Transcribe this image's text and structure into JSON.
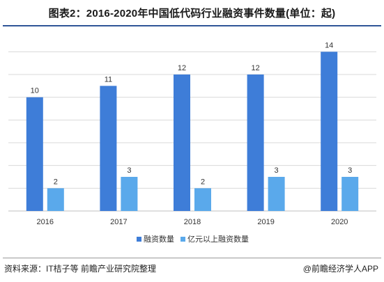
{
  "title": "图表2：2016-2020年中国低代码行业融资事件数量(单位：起)",
  "source": "资料来源：IT桔子等 前瞻产业研究院整理",
  "brand": "@前瞻经济学人APP",
  "colors": {
    "series1": "#3e7dd8",
    "series2": "#5aa9eb",
    "grid": "#d9d9d9",
    "axis": "#bfbfbf"
  },
  "chart_data": {
    "type": "bar",
    "categories": [
      "2016",
      "2017",
      "2018",
      "2019",
      "2020"
    ],
    "series": [
      {
        "name": "融资数量",
        "values": [
          10,
          11,
          12,
          12,
          14
        ]
      },
      {
        "name": "亿元以上融资数量",
        "values": [
          2,
          3,
          2,
          3,
          3
        ]
      }
    ],
    "ylim": [
      0,
      15
    ],
    "grid": true,
    "legend": "bottom"
  }
}
